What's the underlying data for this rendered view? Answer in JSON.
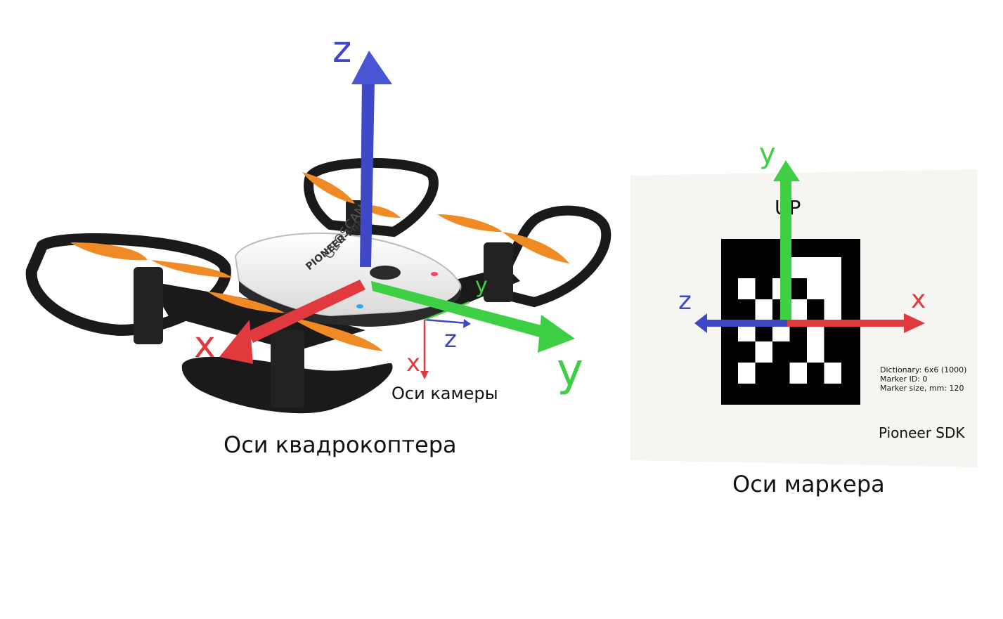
{
  "quad": {
    "brand_text": "GEOSCAN",
    "model_text": "PIONEER-MINI",
    "axes": {
      "z": "z",
      "x": "x",
      "y": "y"
    },
    "caption": "Оси квадрокоптера"
  },
  "camera": {
    "axes": {
      "x": "x",
      "y": "y",
      "z": "z"
    },
    "caption": "Оси камеры"
  },
  "marker": {
    "up_label": "UP",
    "axes": {
      "y": "y",
      "x": "x",
      "z": "z"
    },
    "info": {
      "dictionary": "Dictionary:  6x6 (1000)",
      "marker_id": "Marker ID:  0",
      "marker_size": "Marker size, mm: 120"
    },
    "sdk_label": "Pioneer SDK",
    "caption": "Оси маркера"
  },
  "colors": {
    "axis_x": "#e03a3e",
    "axis_y": "#3fcf45",
    "axis_z": "#3f48c7",
    "propeller": "#f08a25",
    "frame": "#1a1a1a",
    "body": "#eeeeee",
    "marker_bg": "#f7f5f1"
  }
}
